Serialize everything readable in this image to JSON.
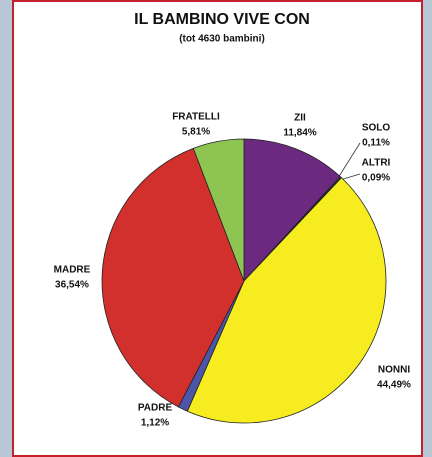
{
  "chart_data": {
    "type": "pie",
    "title": "IL BAMBINO VIVE CON",
    "subtitle": "(tot 4630 bambini)",
    "categories": [
      "ZII",
      "SOLO",
      "ALTRI",
      "NONNI",
      "PADRE",
      "MADRE",
      "FRATELLI"
    ],
    "values": [
      11.84,
      0.11,
      0.09,
      44.49,
      1.12,
      36.54,
      5.81
    ],
    "value_labels": [
      "11,84%",
      "0,11%",
      "0,09%",
      "44,49%",
      "1,12%",
      "36,54%",
      "5,81%"
    ],
    "colors": [
      "#6b2a80",
      "#d8d8d8",
      "#a0a0a0",
      "#f6ec20",
      "#4b56a8",
      "#d2302c",
      "#8dc452"
    ]
  }
}
